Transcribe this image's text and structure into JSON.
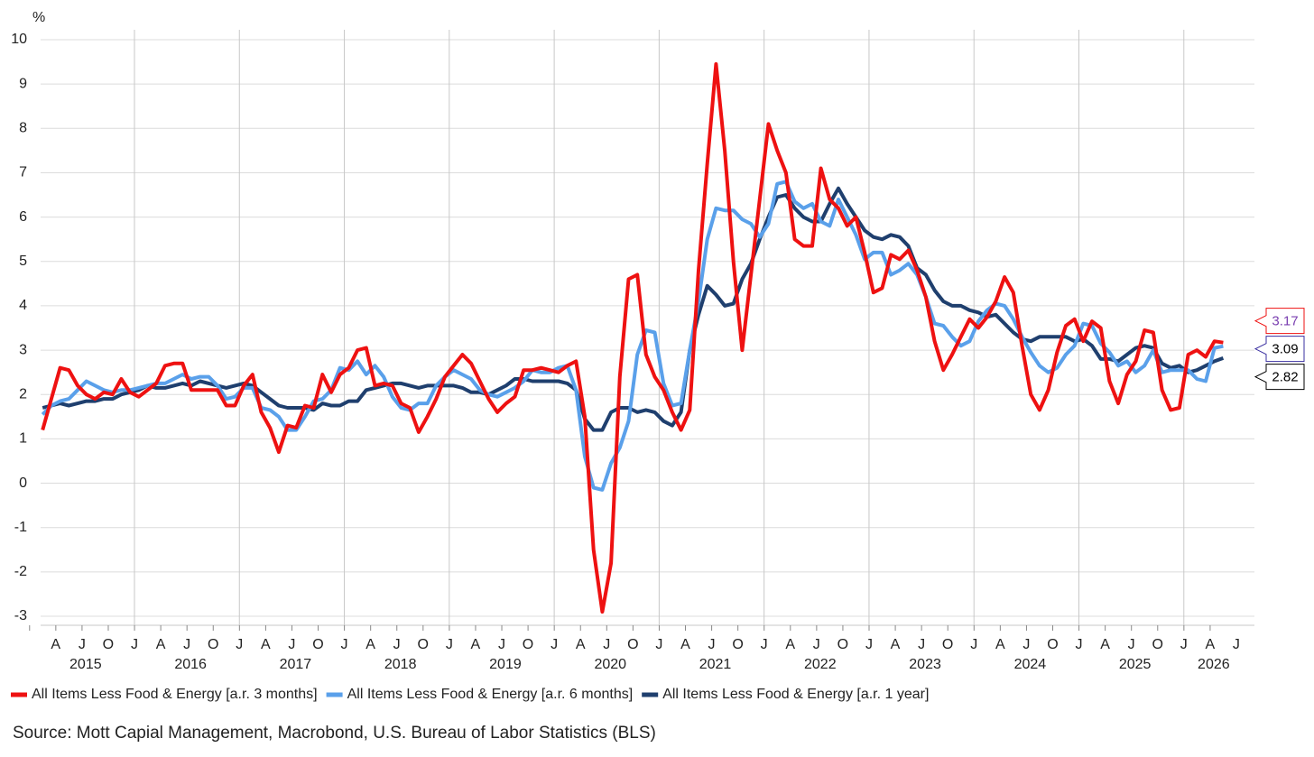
{
  "chart_data": {
    "type": "line",
    "y_label": "%",
    "source": "Source: Mott Capial Management, Macrobond, U.S. Bureau of Labor Statistics (BLS)",
    "x": [
      "2015-02",
      "2015-03",
      "2015-04",
      "2015-05",
      "2015-06",
      "2015-07",
      "2015-08",
      "2015-09",
      "2015-10",
      "2015-11",
      "2015-12",
      "2016-01",
      "2016-02",
      "2016-03",
      "2016-04",
      "2016-05",
      "2016-06",
      "2016-07",
      "2016-08",
      "2016-09",
      "2016-10",
      "2016-11",
      "2016-12",
      "2017-01",
      "2017-02",
      "2017-03",
      "2017-04",
      "2017-05",
      "2017-06",
      "2017-07",
      "2017-08",
      "2017-09",
      "2017-10",
      "2017-11",
      "2017-12",
      "2018-01",
      "2018-02",
      "2018-03",
      "2018-04",
      "2018-05",
      "2018-06",
      "2018-07",
      "2018-08",
      "2018-09",
      "2018-10",
      "2018-11",
      "2018-12",
      "2019-01",
      "2019-02",
      "2019-03",
      "2019-04",
      "2019-05",
      "2019-06",
      "2019-07",
      "2019-08",
      "2019-09",
      "2019-10",
      "2019-11",
      "2019-12",
      "2020-01",
      "2020-02",
      "2020-03",
      "2020-04",
      "2020-05",
      "2020-06",
      "2020-07",
      "2020-08",
      "2020-09",
      "2020-10",
      "2020-11",
      "2020-12",
      "2021-01",
      "2021-02",
      "2021-03",
      "2021-04",
      "2021-05",
      "2021-06",
      "2021-07",
      "2021-08",
      "2021-09",
      "2021-10",
      "2021-11",
      "2021-12",
      "2022-01",
      "2022-02",
      "2022-03",
      "2022-04",
      "2022-05",
      "2022-06",
      "2022-07",
      "2022-08",
      "2022-09",
      "2022-10",
      "2022-11",
      "2022-12",
      "2023-01",
      "2023-02",
      "2023-03",
      "2023-04",
      "2023-05",
      "2023-06",
      "2023-07",
      "2023-08",
      "2023-09",
      "2023-10",
      "2023-11",
      "2023-12",
      "2024-01",
      "2024-02",
      "2024-03",
      "2024-04",
      "2024-05",
      "2024-06",
      "2024-07",
      "2024-08",
      "2024-09",
      "2024-10",
      "2024-11",
      "2024-12",
      "2025-01",
      "2025-02",
      "2025-03",
      "2025-04",
      "2025-05",
      "2025-06",
      "2025-07",
      "2025-08",
      "2025-09",
      "2025-10",
      "2025-11",
      "2025-12",
      "2026-01",
      "2026-02",
      "2026-03",
      "2026-04",
      "2026-05"
    ],
    "series": [
      {
        "name": "All Items Less Food & Energy [a.r. 3 months]",
        "color": "#ee1111",
        "values": [
          1.2,
          1.9,
          2.6,
          2.55,
          2.2,
          2.0,
          1.9,
          2.05,
          2.0,
          2.35,
          2.05,
          1.95,
          2.1,
          2.25,
          2.65,
          2.7,
          2.7,
          2.1,
          2.1,
          2.1,
          2.1,
          1.75,
          1.75,
          2.2,
          2.45,
          1.6,
          1.25,
          0.7,
          1.3,
          1.25,
          1.75,
          1.7,
          2.45,
          2.05,
          2.45,
          2.6,
          3.0,
          3.05,
          2.2,
          2.25,
          2.2,
          1.8,
          1.7,
          1.15,
          1.5,
          1.9,
          2.4,
          2.65,
          2.9,
          2.7,
          2.3,
          1.9,
          1.6,
          1.8,
          1.95,
          2.55,
          2.55,
          2.6,
          2.55,
          2.5,
          2.65,
          2.75,
          1.5,
          -1.5,
          -2.9,
          -1.8,
          2.4,
          4.6,
          4.7,
          2.9,
          2.4,
          2.1,
          1.6,
          1.2,
          1.65,
          4.8,
          7.2,
          9.45,
          7.5,
          5.0,
          3.0,
          4.7,
          6.4,
          8.1,
          7.5,
          7.0,
          5.5,
          5.35,
          5.35,
          7.1,
          6.4,
          6.2,
          5.8,
          6.0,
          5.2,
          4.3,
          4.4,
          5.15,
          5.05,
          5.25,
          4.8,
          4.2,
          3.2,
          2.55,
          2.9,
          3.3,
          3.7,
          3.5,
          3.75,
          4.1,
          4.65,
          4.3,
          3.1,
          2.0,
          1.65,
          2.1,
          2.95,
          3.55,
          3.7,
          3.2,
          3.65,
          3.5,
          2.3,
          1.8,
          2.45,
          2.75,
          3.45,
          3.4,
          2.1,
          1.65,
          1.7,
          2.9,
          3.0,
          2.85,
          3.2,
          3.17
        ]
      },
      {
        "name": "All Items Less Food & Energy [a.r. 6 months]",
        "color": "#5aa0ea",
        "values": [
          1.55,
          1.75,
          1.85,
          1.9,
          2.1,
          2.3,
          2.2,
          2.1,
          2.05,
          2.1,
          2.1,
          2.15,
          2.2,
          2.25,
          2.25,
          2.35,
          2.45,
          2.35,
          2.4,
          2.4,
          2.2,
          1.9,
          1.95,
          2.15,
          2.15,
          1.7,
          1.65,
          1.5,
          1.2,
          1.2,
          1.5,
          1.85,
          1.9,
          2.1,
          2.6,
          2.55,
          2.75,
          2.45,
          2.65,
          2.4,
          1.95,
          1.7,
          1.65,
          1.8,
          1.8,
          2.2,
          2.4,
          2.55,
          2.45,
          2.35,
          2.1,
          2.0,
          1.95,
          2.05,
          2.15,
          2.3,
          2.55,
          2.5,
          2.5,
          2.6,
          2.65,
          2.1,
          0.6,
          -0.1,
          -0.15,
          0.45,
          0.8,
          1.4,
          2.9,
          3.45,
          3.4,
          2.25,
          1.75,
          1.8,
          3.0,
          4.1,
          5.5,
          6.2,
          6.15,
          6.15,
          5.95,
          5.85,
          5.55,
          5.85,
          6.75,
          6.8,
          6.35,
          6.2,
          6.3,
          5.9,
          5.8,
          6.4,
          6.0,
          5.6,
          5.05,
          5.2,
          5.2,
          4.7,
          4.8,
          4.95,
          4.7,
          4.2,
          3.6,
          3.55,
          3.3,
          3.1,
          3.2,
          3.65,
          3.9,
          4.05,
          4.0,
          3.7,
          3.3,
          2.95,
          2.65,
          2.5,
          2.6,
          2.9,
          3.1,
          3.6,
          3.55,
          3.15,
          2.95,
          2.65,
          2.75,
          2.5,
          2.65,
          3.0,
          2.5,
          2.55,
          2.55,
          2.55,
          2.35,
          2.3,
          3.05,
          3.09
        ]
      },
      {
        "name": "All Items Less Food & Energy [a.r. 1 year]",
        "color": "#1f3f6e",
        "values": [
          1.7,
          1.75,
          1.8,
          1.75,
          1.8,
          1.85,
          1.85,
          1.9,
          1.9,
          2.0,
          2.05,
          2.1,
          2.2,
          2.15,
          2.15,
          2.2,
          2.25,
          2.2,
          2.3,
          2.25,
          2.2,
          2.15,
          2.2,
          2.25,
          2.2,
          2.05,
          1.9,
          1.75,
          1.7,
          1.7,
          1.7,
          1.65,
          1.8,
          1.75,
          1.75,
          1.85,
          1.85,
          2.1,
          2.15,
          2.2,
          2.25,
          2.25,
          2.2,
          2.15,
          2.2,
          2.2,
          2.2,
          2.2,
          2.15,
          2.05,
          2.05,
          2.0,
          2.1,
          2.2,
          2.35,
          2.35,
          2.3,
          2.3,
          2.3,
          2.3,
          2.25,
          2.1,
          1.45,
          1.2,
          1.2,
          1.6,
          1.7,
          1.7,
          1.6,
          1.65,
          1.6,
          1.4,
          1.3,
          1.6,
          3.0,
          3.8,
          4.45,
          4.25,
          4.0,
          4.05,
          4.6,
          4.95,
          5.5,
          6.0,
          6.45,
          6.5,
          6.2,
          6.0,
          5.9,
          5.9,
          6.3,
          6.65,
          6.3,
          6.0,
          5.7,
          5.55,
          5.5,
          5.6,
          5.55,
          5.35,
          4.85,
          4.7,
          4.35,
          4.1,
          4.0,
          4.0,
          3.9,
          3.85,
          3.75,
          3.8,
          3.6,
          3.4,
          3.25,
          3.2,
          3.3,
          3.3,
          3.3,
          3.3,
          3.2,
          3.25,
          3.1,
          2.8,
          2.8,
          2.75,
          2.9,
          3.05,
          3.1,
          3.05,
          2.7,
          2.6,
          2.65,
          2.5,
          2.55,
          2.65,
          2.75,
          2.82
        ]
      }
    ],
    "ylim": [
      -3,
      10
    ],
    "yticks": [
      -3,
      -2,
      -1,
      0,
      1,
      2,
      3,
      4,
      5,
      6,
      7,
      8,
      9,
      10
    ],
    "xticks": [
      {
        "value": "2015-04",
        "label": "A"
      },
      {
        "value": "2015-07",
        "label": "J"
      },
      {
        "value": "2015-10",
        "label": "O"
      },
      {
        "value": "2016-01",
        "label": "J"
      },
      {
        "value": "2016-04",
        "label": "A"
      },
      {
        "value": "2016-07",
        "label": "J"
      },
      {
        "value": "2016-10",
        "label": "O"
      },
      {
        "value": "2017-01",
        "label": "J"
      },
      {
        "value": "2017-04",
        "label": "A"
      },
      {
        "value": "2017-07",
        "label": "J"
      },
      {
        "value": "2017-10",
        "label": "O"
      },
      {
        "value": "2018-01",
        "label": "J"
      },
      {
        "value": "2018-04",
        "label": "A"
      },
      {
        "value": "2018-07",
        "label": "J"
      },
      {
        "value": "2018-10",
        "label": "O"
      },
      {
        "value": "2019-01",
        "label": "J"
      },
      {
        "value": "2019-04",
        "label": "A"
      },
      {
        "value": "2019-07",
        "label": "J"
      },
      {
        "value": "2019-10",
        "label": "O"
      },
      {
        "value": "2020-01",
        "label": "J"
      },
      {
        "value": "2020-04",
        "label": "A"
      },
      {
        "value": "2020-07",
        "label": "J"
      },
      {
        "value": "2020-10",
        "label": "O"
      },
      {
        "value": "2021-01",
        "label": "J"
      },
      {
        "value": "2021-04",
        "label": "A"
      },
      {
        "value": "2021-07",
        "label": "J"
      },
      {
        "value": "2021-10",
        "label": "O"
      },
      {
        "value": "2022-01",
        "label": "J"
      },
      {
        "value": "2022-04",
        "label": "A"
      },
      {
        "value": "2022-07",
        "label": "J"
      },
      {
        "value": "2022-10",
        "label": "O"
      },
      {
        "value": "2023-01",
        "label": "J"
      },
      {
        "value": "2023-04",
        "label": "A"
      },
      {
        "value": "2023-07",
        "label": "J"
      },
      {
        "value": "2023-10",
        "label": "O"
      },
      {
        "value": "2024-01",
        "label": "J"
      },
      {
        "value": "2024-04",
        "label": "A"
      },
      {
        "value": "2024-07",
        "label": "J"
      },
      {
        "value": "2024-10",
        "label": "O"
      },
      {
        "value": "2025-01",
        "label": "J"
      },
      {
        "value": "2025-04",
        "label": "A"
      },
      {
        "value": "2025-07",
        "label": "J"
      },
      {
        "value": "2025-10",
        "label": "O"
      },
      {
        "value": "2026-01",
        "label": "J"
      },
      {
        "value": "2026-04",
        "label": "A"
      },
      {
        "value": "2026-07",
        "label": "J"
      }
    ],
    "year_labels": [
      {
        "value": "2015-07",
        "label": "2015"
      },
      {
        "value": "2016-07",
        "label": "2016"
      },
      {
        "value": "2017-07",
        "label": "2017"
      },
      {
        "value": "2018-07",
        "label": "2018"
      },
      {
        "value": "2019-07",
        "label": "2019"
      },
      {
        "value": "2020-07",
        "label": "2020"
      },
      {
        "value": "2021-07",
        "label": "2021"
      },
      {
        "value": "2022-07",
        "label": "2022"
      },
      {
        "value": "2023-07",
        "label": "2023"
      },
      {
        "value": "2024-07",
        "label": "2024"
      },
      {
        "value": "2025-07",
        "label": "2025"
      },
      {
        "value": "2026-04",
        "label": "2026"
      }
    ],
    "grid": true,
    "year_grid": true,
    "legend": "bottom",
    "end_label_colors": [
      "#7a3fb0",
      "#000000",
      "#000000"
    ],
    "end_label_borders": [
      "#ee1111",
      "#3a2fa0",
      "#000000"
    ]
  }
}
